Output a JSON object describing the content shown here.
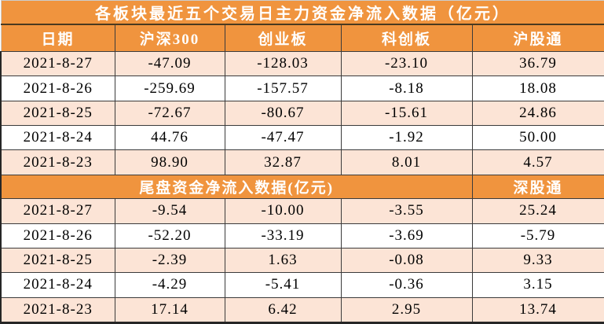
{
  "title": "各板块最近五个交易日主力资金净流入数据（亿元）",
  "chart_data": {
    "type": "table",
    "title": "各板块最近五个交易日主力资金净流入数据（亿元）",
    "unit": "亿元",
    "columns": [
      "日期",
      "沪深300",
      "创业板",
      "科创板",
      "沪股通"
    ],
    "main_rows": [
      [
        "2021-8-27",
        "-47.09",
        "-128.03",
        "-23.10",
        "36.79"
      ],
      [
        "2021-8-26",
        "-259.69",
        "-157.57",
        "-8.18",
        "18.08"
      ],
      [
        "2021-8-25",
        "-72.67",
        "-80.67",
        "-15.61",
        "24.86"
      ],
      [
        "2021-8-24",
        "44.76",
        "-47.47",
        "-1.92",
        "50.00"
      ],
      [
        "2021-8-23",
        "98.90",
        "32.87",
        "8.01",
        "4.57"
      ]
    ],
    "section2_title": "尾盘资金净流入数据(亿元)",
    "section2_column": "深股通",
    "section2_rows": [
      [
        "2021-8-27",
        "-9.54",
        "-10.00",
        "-3.55",
        "25.24"
      ],
      [
        "2021-8-26",
        "-52.20",
        "-33.19",
        "-3.69",
        "-5.79"
      ],
      [
        "2021-8-25",
        "-2.39",
        "1.63",
        "-0.08",
        "9.33"
      ],
      [
        "2021-8-24",
        "-4.29",
        "-5.41",
        "-0.36",
        "3.15"
      ],
      [
        "2021-8-23",
        "17.14",
        "6.42",
        "2.95",
        "13.74"
      ]
    ]
  },
  "comment_marker": {
    "section": "main",
    "row": 4,
    "col": 4
  },
  "colors": {
    "header_bg": "#F0943E",
    "alt_row_bg": "#FCE4D6",
    "row_bg": "#FFFFFF",
    "border": "#3B3B3B",
    "header_text": "#FFFFFF",
    "body_text": "#000000",
    "comment_marker": "#4065C9"
  }
}
